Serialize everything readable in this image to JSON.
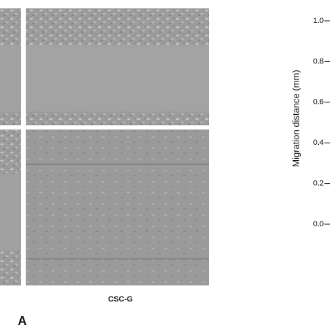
{
  "figure": {
    "panel_label": "A",
    "image_caption": "CSC-G"
  },
  "chart_data": {
    "type": "axis",
    "y_label": "Migration  distance (mm)",
    "ylim": [
      0,
      1
    ],
    "yticks": [
      {
        "value": 0,
        "label": "0.0"
      },
      {
        "value": 0.2,
        "label": "0.2"
      },
      {
        "value": 0.4,
        "label": "0.4"
      },
      {
        "value": 0.6,
        "label": "0.6"
      },
      {
        "value": 0.8,
        "label": "0.8"
      },
      {
        "value": 1,
        "label": "1.0"
      }
    ]
  }
}
